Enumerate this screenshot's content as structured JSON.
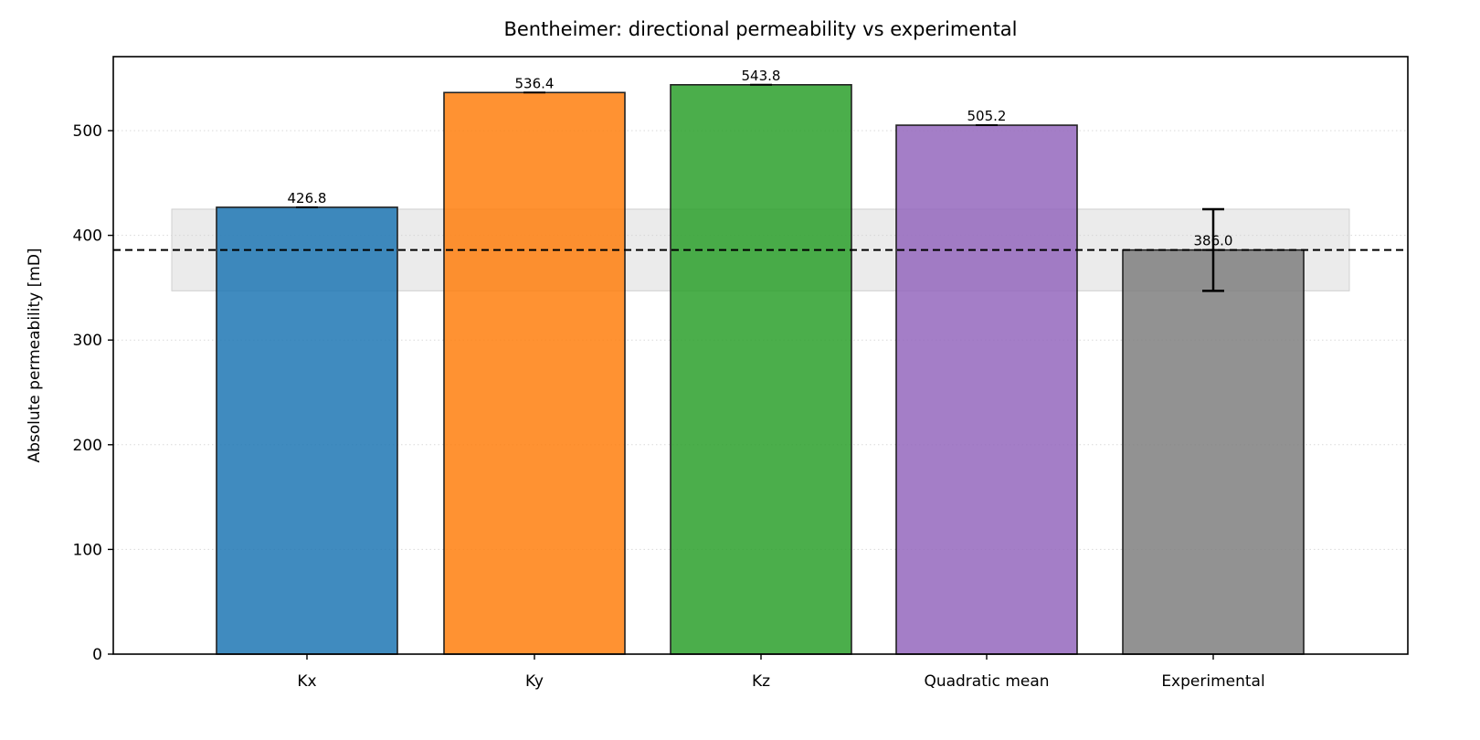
{
  "chart_data": {
    "type": "bar",
    "title": "Bentheimer: directional permeability vs experimental",
    "xlabel": "",
    "ylabel": "Absolute permeability [mD]",
    "categories": [
      "Kx",
      "Ky",
      "Kz",
      "Quadratic mean",
      "Experimental"
    ],
    "values": [
      426.8,
      536.4,
      543.8,
      505.2,
      386.0
    ],
    "value_labels": [
      "426.8",
      "536.4",
      "543.8",
      "505.2",
      "386.0"
    ],
    "colors": [
      "#1f77b4",
      "#ff7f0e",
      "#2ca02c",
      "#9467bd",
      "#7f7f7f"
    ],
    "error_bars": [
      null,
      null,
      null,
      null,
      {
        "low": 347,
        "high": 425
      }
    ],
    "reference_line": {
      "y": 386.0,
      "style": "dashed",
      "color": "#000000"
    },
    "reference_band": {
      "ymin": 347,
      "ymax": 425,
      "color": "#d3d3d3"
    },
    "ylim": [
      0,
      570
    ],
    "yticks": [
      0,
      100,
      200,
      300,
      400,
      500
    ],
    "grid": {
      "y": true,
      "style": "dotted"
    },
    "legend": null
  }
}
